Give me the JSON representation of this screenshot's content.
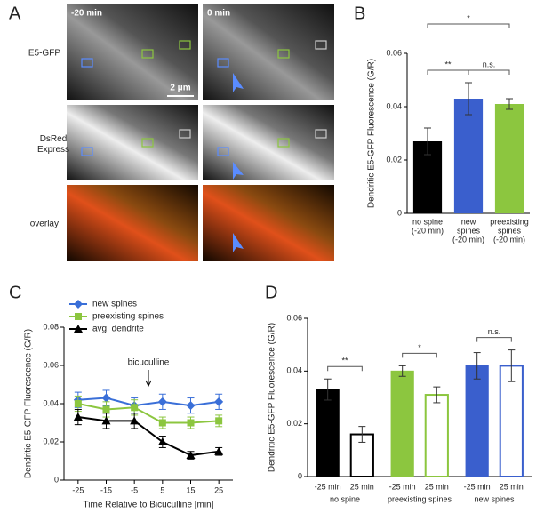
{
  "panel_labels": [
    "A",
    "B",
    "C",
    "D"
  ],
  "panel_a": {
    "row_labels": [
      "E5-GFP",
      "DsRed Express",
      "overlay"
    ],
    "time_labels": [
      "-20 min",
      "0 min"
    ],
    "scale_bar": "2 μm"
  },
  "chart_data": [
    {
      "type": "bar",
      "ylabel": "Dendritic E5-GFP Fluorescence (G/R)",
      "categories": [
        [
          "no spine",
          "(-20 min)"
        ],
        [
          "new",
          "spines",
          "(-20 min)"
        ],
        [
          "preexisting",
          "spines",
          "(-20 min)"
        ]
      ],
      "values": [
        0.027,
        0.043,
        0.041
      ],
      "errors": [
        0.005,
        0.006,
        0.002
      ],
      "colors": [
        "#000000",
        "#3a5fcd",
        "#8cc63f"
      ],
      "ylim": [
        0,
        0.06
      ],
      "yticks": [
        0,
        0.02,
        0.04,
        0.06
      ],
      "significance": [
        {
          "label": "**",
          "bars": [
            0,
            1
          ]
        },
        {
          "label": "n.s.",
          "bars": [
            1,
            2
          ]
        },
        {
          "label": "*",
          "bars": [
            0,
            2
          ]
        }
      ]
    },
    {
      "type": "line",
      "xlabel": "Time Relative to Bicuculline [min]",
      "ylabel": "Dendritic E5-GFP Fluorescence (G/R)",
      "x": [
        -25,
        -15,
        -5,
        5,
        15,
        25
      ],
      "series": [
        {
          "name": "new spines",
          "color": "#3a6fd8",
          "marker": "diamond",
          "values": [
            0.042,
            0.043,
            0.039,
            0.041,
            0.039,
            0.041
          ],
          "errors": [
            0.004,
            0.004,
            0.004,
            0.004,
            0.004,
            0.004
          ]
        },
        {
          "name": "preexisting spines",
          "color": "#8cc63f",
          "marker": "square",
          "values": [
            0.04,
            0.037,
            0.038,
            0.03,
            0.03,
            0.031
          ],
          "errors": [
            0.004,
            0.004,
            0.004,
            0.003,
            0.003,
            0.003
          ]
        },
        {
          "name": "avg. dendrite",
          "color": "#000000",
          "marker": "triangle",
          "values": [
            0.033,
            0.031,
            0.031,
            0.02,
            0.013,
            0.015
          ],
          "errors": [
            0.004,
            0.004,
            0.004,
            0.003,
            0.002,
            0.002
          ]
        }
      ],
      "xlim": [
        -30,
        30
      ],
      "xticks": [
        -25,
        -15,
        -5,
        5,
        15,
        25
      ],
      "ylim": [
        0,
        0.08
      ],
      "yticks": [
        0,
        0.02,
        0.04,
        0.06,
        0.08
      ],
      "annotation": {
        "text": "bicuculline",
        "x": 0
      }
    },
    {
      "type": "bar",
      "ylabel": "Dendritic E5-GFP Fluorescence (G/R)",
      "categories": [
        "-25 min",
        "25 min"
      ],
      "bar_styles": [
        "filled",
        "outline"
      ],
      "groups": [
        {
          "name": "no spine",
          "color": "#000000",
          "values": [
            0.033,
            0.016
          ],
          "errors": [
            0.004,
            0.003
          ],
          "significance": "**"
        },
        {
          "name": "preexisting spines",
          "color": "#8cc63f",
          "values": [
            0.04,
            0.031
          ],
          "errors": [
            0.002,
            0.003
          ],
          "significance": "*"
        },
        {
          "name": "new spines",
          "color": "#3a5fcd",
          "values": [
            0.042,
            0.042
          ],
          "errors": [
            0.005,
            0.006
          ],
          "significance": "n.s."
        }
      ],
      "ylim": [
        0,
        0.06
      ],
      "yticks": [
        0,
        0.02,
        0.04,
        0.06
      ]
    }
  ]
}
